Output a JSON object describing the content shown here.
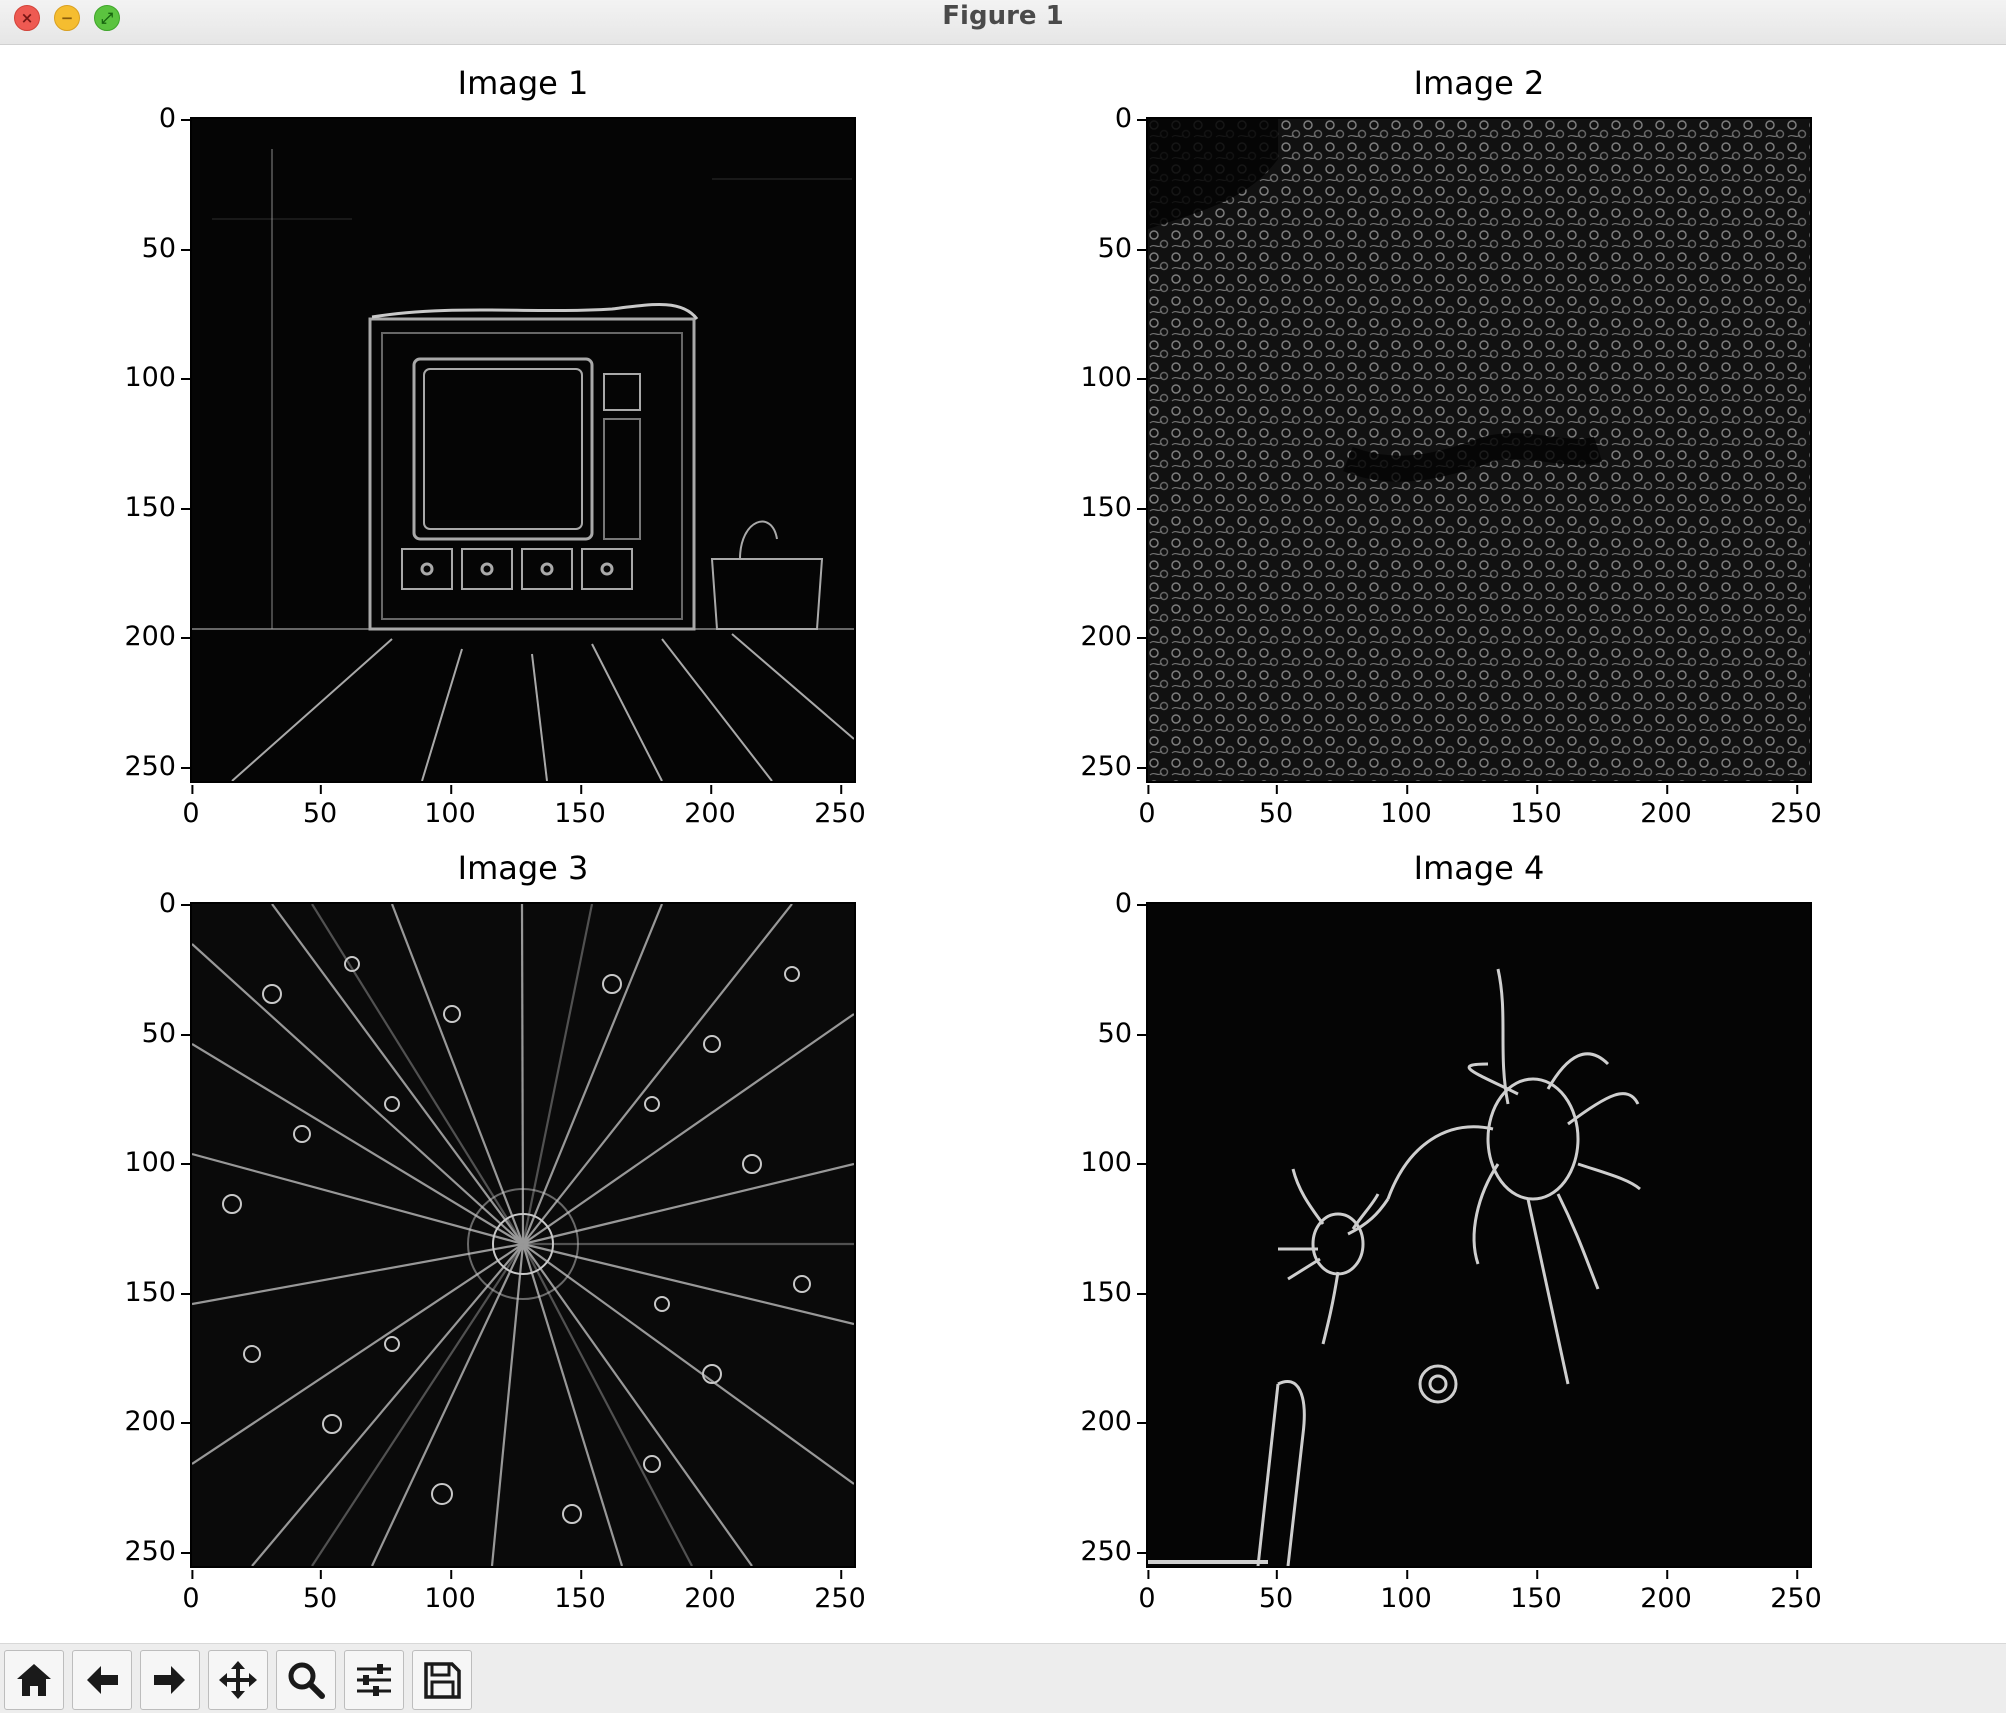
{
  "window": {
    "title": "Figure 1",
    "controls": [
      "close",
      "minimize",
      "zoom"
    ]
  },
  "figure": {
    "panels": [
      {
        "title": "Image 1",
        "description": "Edge-detected image of a TV cabinet with a basket on a floor",
        "yticks": [
          "0",
          "50",
          "100",
          "150",
          "200",
          "250"
        ],
        "xticks": [
          "0",
          "50",
          "100",
          "150",
          "200",
          "250"
        ]
      },
      {
        "title": "Image 2",
        "description": "Edge-detected dense texture of a sea anemone/coral field",
        "yticks": [
          "0",
          "50",
          "100",
          "150",
          "200",
          "250"
        ],
        "xticks": [
          "0",
          "50",
          "100",
          "150",
          "200",
          "250"
        ]
      },
      {
        "title": "Image 3",
        "description": "Edge-detected flower with radial petals and water droplets",
        "yticks": [
          "0",
          "50",
          "100",
          "150",
          "200",
          "250"
        ],
        "xticks": [
          "0",
          "50",
          "100",
          "150",
          "200",
          "250"
        ]
      },
      {
        "title": "Image 4",
        "description": "Edge-detected spiders and a flower on a dark background",
        "yticks": [
          "0",
          "50",
          "100",
          "150",
          "200",
          "250"
        ],
        "xticks": [
          "0",
          "50",
          "100",
          "150",
          "200",
          "250"
        ]
      }
    ]
  },
  "toolbar": {
    "buttons": [
      {
        "icon": "home-icon",
        "tooltip": "Reset original view"
      },
      {
        "icon": "back-arrow-icon",
        "tooltip": "Back to previous view"
      },
      {
        "icon": "forward-arrow-icon",
        "tooltip": "Forward to next view"
      },
      {
        "icon": "pan-move-icon",
        "tooltip": "Pan axes"
      },
      {
        "icon": "zoom-magnifier-icon",
        "tooltip": "Zoom to rectangle"
      },
      {
        "icon": "configure-subplots-icon",
        "tooltip": "Configure subplots"
      },
      {
        "icon": "save-floppy-icon",
        "tooltip": "Save the figure"
      }
    ]
  }
}
